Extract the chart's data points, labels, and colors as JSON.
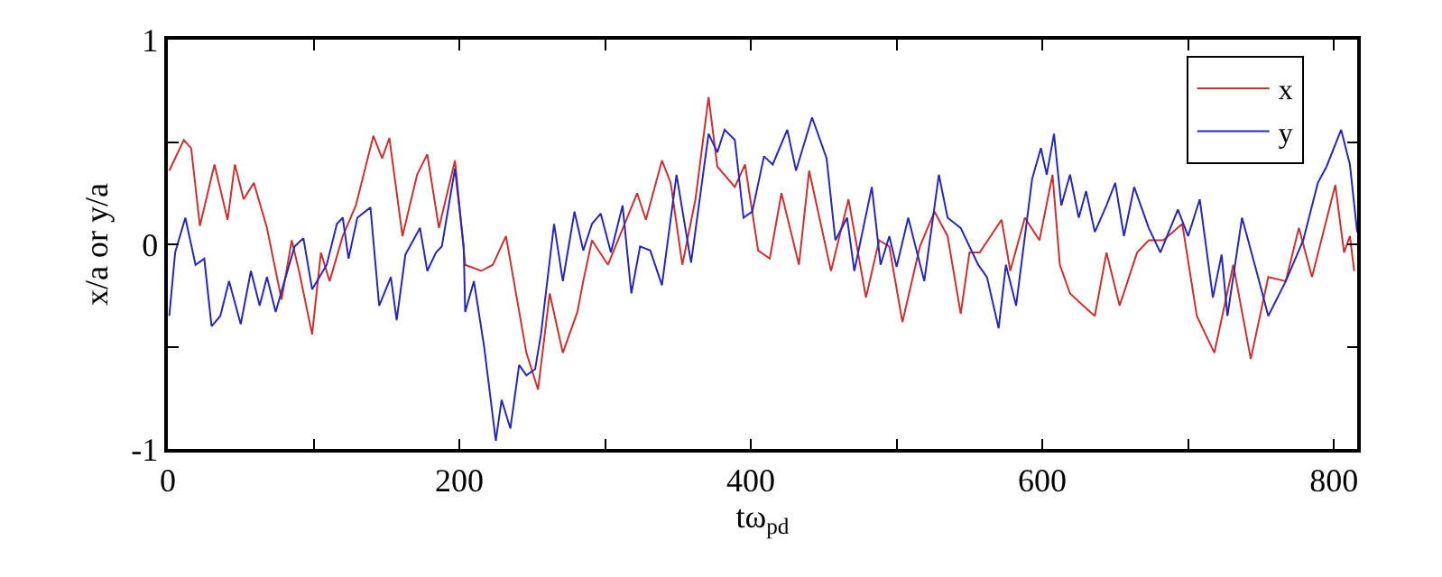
{
  "chart_data": {
    "type": "line",
    "xlabel": "tω$_{pd}$",
    "ylabel": "x/a or y/a",
    "xlim": [
      0,
      816
    ],
    "ylim": [
      -1,
      1
    ],
    "xticks": [
      0,
      {
        "value": 100,
        "label": null
      },
      200,
      {
        "value": 300,
        "label": null
      },
      400,
      {
        "value": 500,
        "label": null
      },
      600,
      {
        "value": 700,
        "label": null
      },
      800
    ],
    "yticks": [
      -1,
      {
        "value": -0.5,
        "label": null
      },
      0,
      {
        "value": 0.5,
        "label": null
      },
      1
    ],
    "legend": "top right",
    "marker": "none",
    "line_style": "solid",
    "series": [
      {
        "name": "x",
        "color": "#c83232",
        "x": [
          1,
          11,
          16,
          22,
          32,
          41,
          46,
          52,
          59,
          68,
          78,
          85,
          90,
          99,
          105,
          111,
          120,
          129,
          141,
          147,
          152,
          161,
          171,
          178,
          186,
          197,
          204,
          215,
          223,
          232,
          246,
          254,
          262,
          271,
          281,
          285,
          291,
          302,
          310,
          322,
          328,
          339,
          345,
          353,
          362,
          371,
          377,
          389,
          396,
          405,
          413,
          421,
          433,
          440,
          455,
          467,
          479,
          488,
          495,
          504,
          516,
          526,
          535,
          544,
          550,
          557,
          572,
          578,
          588,
          598,
          607,
          612,
          619,
          628,
          636,
          644,
          653,
          665,
          673,
          683,
          696,
          706,
          718,
          731,
          743,
          755,
          767,
          776,
          785,
          801,
          807,
          811,
          814
        ],
        "values": [
          0.36,
          0.51,
          0.47,
          0.09,
          0.39,
          0.12,
          0.39,
          0.22,
          0.3,
          0.08,
          -0.27,
          0.02,
          -0.13,
          -0.44,
          -0.04,
          -0.18,
          0.04,
          0.19,
          0.53,
          0.42,
          0.52,
          0.04,
          0.34,
          0.44,
          0.08,
          0.41,
          -0.1,
          -0.13,
          -0.1,
          0.04,
          -0.53,
          -0.71,
          -0.24,
          -0.53,
          -0.33,
          -0.18,
          0.02,
          -0.1,
          0.04,
          0.25,
          0.12,
          0.41,
          0.3,
          -0.1,
          0.22,
          0.72,
          0.38,
          0.28,
          0.39,
          -0.03,
          -0.07,
          0.25,
          -0.1,
          0.36,
          -0.13,
          0.22,
          -0.26,
          0.02,
          -0.01,
          -0.38,
          -0.01,
          0.16,
          0.04,
          -0.34,
          -0.04,
          -0.04,
          0.12,
          -0.13,
          0.13,
          0.02,
          0.34,
          -0.1,
          -0.24,
          -0.3,
          -0.35,
          -0.04,
          -0.3,
          -0.04,
          0.02,
          0.02,
          0.1,
          -0.35,
          -0.53,
          -0.1,
          -0.56,
          -0.16,
          -0.18,
          0.08,
          -0.16,
          0.29,
          -0.04,
          0.04,
          -0.13
        ]
      },
      {
        "name": "y",
        "color": "#2828b4",
        "x": [
          1,
          5,
          12,
          19,
          25,
          30,
          36,
          42,
          50,
          57,
          63,
          68,
          74,
          80,
          87,
          93,
          99,
          109,
          116,
          120,
          124,
          130,
          139,
          145,
          153,
          157,
          163,
          173,
          178,
          184,
          188,
          197,
          203,
          204,
          210,
          217,
          225,
          229,
          235,
          241,
          246,
          252,
          256,
          265,
          271,
          279,
          285,
          291,
          297,
          304,
          312,
          318,
          324,
          331,
          339,
          349,
          359,
          371,
          377,
          382,
          389,
          395,
          401,
          409,
          415,
          425,
          431,
          442,
          452,
          458,
          466,
          471,
          483,
          489,
          495,
          500,
          508,
          519,
          529,
          535,
          544,
          556,
          562,
          570,
          575,
          582,
          593,
          599,
          603,
          608,
          613,
          619,
          625,
          630,
          636,
          644,
          650,
          656,
          663,
          673,
          681,
          693,
          700,
          708,
          717,
          723,
          727,
          737,
          748,
          755,
          767,
          779,
          789,
          795,
          805,
          811,
          816
        ],
        "values": [
          -0.35,
          -0.04,
          0.13,
          -0.1,
          -0.07,
          -0.4,
          -0.35,
          -0.18,
          -0.39,
          -0.13,
          -0.3,
          -0.16,
          -0.33,
          -0.18,
          -0.01,
          0.03,
          -0.22,
          -0.1,
          0.1,
          0.13,
          -0.07,
          0.13,
          0.18,
          -0.3,
          -0.16,
          -0.37,
          -0.05,
          0.08,
          -0.13,
          -0.04,
          -0.01,
          0.37,
          -0.01,
          -0.33,
          -0.18,
          -0.5,
          -0.96,
          -0.76,
          -0.9,
          -0.59,
          -0.64,
          -0.61,
          -0.44,
          0.1,
          -0.18,
          0.16,
          -0.03,
          0.1,
          0.15,
          -0.04,
          0.19,
          -0.24,
          -0.01,
          -0.03,
          -0.2,
          0.34,
          -0.09,
          0.54,
          0.45,
          0.56,
          0.51,
          0.13,
          0.16,
          0.43,
          0.39,
          0.56,
          0.36,
          0.62,
          0.42,
          0.02,
          0.13,
          -0.13,
          0.28,
          -0.1,
          0.04,
          -0.11,
          0.13,
          -0.18,
          0.34,
          0.13,
          0.08,
          -0.1,
          -0.16,
          -0.41,
          -0.1,
          -0.3,
          0.32,
          0.47,
          0.34,
          0.54,
          0.19,
          0.34,
          0.13,
          0.26,
          0.06,
          0.19,
          0.3,
          0.04,
          0.28,
          0.08,
          -0.04,
          0.17,
          0.04,
          0.22,
          -0.26,
          -0.05,
          -0.35,
          0.13,
          -0.16,
          -0.35,
          -0.18,
          0.02,
          0.3,
          0.38,
          0.56,
          0.39,
          0.06
        ]
      }
    ]
  }
}
